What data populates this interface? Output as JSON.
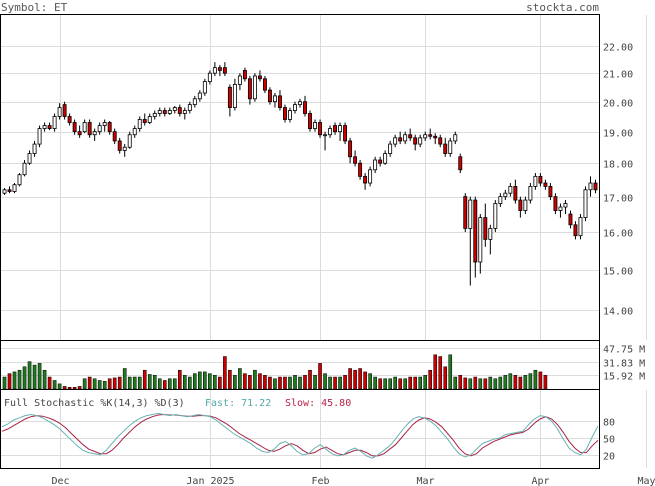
{
  "header": {
    "symbol_label": "Symbol: ET",
    "site": "stockta.com"
  },
  "chart_data": {
    "type": "candlestick",
    "symbol": "ET",
    "price_axis": {
      "ticks": [
        14.0,
        15.0,
        16.0,
        17.0,
        18.0,
        19.0,
        20.0,
        21.0,
        22.0
      ],
      "tick_labels": [
        "14.00",
        "15.00",
        "16.00",
        "17.00",
        "18.00",
        "19.00",
        "20.00",
        "21.00",
        "22.00"
      ],
      "range": [
        13.3,
        23.2
      ],
      "scale": "log",
      "grid": true
    },
    "x_axis": {
      "labels": [
        "Dec",
        "Jan 2025",
        "Feb",
        "Mar",
        "Apr",
        "May"
      ],
      "label_index": [
        11,
        41,
        63,
        84,
        107,
        128
      ]
    },
    "prices": [
      {
        "o": 17.1,
        "h": 17.25,
        "l": 17.05,
        "c": 17.2
      },
      {
        "o": 17.2,
        "h": 17.3,
        "l": 17.1,
        "c": 17.15
      },
      {
        "o": 17.15,
        "h": 17.4,
        "l": 17.1,
        "c": 17.35
      },
      {
        "o": 17.35,
        "h": 17.7,
        "l": 17.3,
        "c": 17.65
      },
      {
        "o": 17.65,
        "h": 18.1,
        "l": 17.6,
        "c": 18.0
      },
      {
        "o": 18.0,
        "h": 18.4,
        "l": 17.95,
        "c": 18.3
      },
      {
        "o": 18.3,
        "h": 18.7,
        "l": 18.2,
        "c": 18.6
      },
      {
        "o": 18.6,
        "h": 19.2,
        "l": 18.5,
        "c": 19.1
      },
      {
        "o": 19.1,
        "h": 19.3,
        "l": 19.0,
        "c": 19.2
      },
      {
        "o": 19.2,
        "h": 19.3,
        "l": 19.05,
        "c": 19.1
      },
      {
        "o": 19.1,
        "h": 19.6,
        "l": 19.0,
        "c": 19.5
      },
      {
        "o": 19.5,
        "h": 19.95,
        "l": 19.4,
        "c": 19.8
      },
      {
        "o": 19.9,
        "h": 20.0,
        "l": 19.4,
        "c": 19.5
      },
      {
        "o": 19.5,
        "h": 19.6,
        "l": 19.2,
        "c": 19.3
      },
      {
        "o": 19.3,
        "h": 19.4,
        "l": 18.9,
        "c": 19.0
      },
      {
        "o": 19.0,
        "h": 19.2,
        "l": 18.8,
        "c": 18.9
      },
      {
        "o": 19.0,
        "h": 19.4,
        "l": 18.95,
        "c": 19.3
      },
      {
        "o": 19.3,
        "h": 19.4,
        "l": 18.8,
        "c": 18.9
      },
      {
        "o": 18.9,
        "h": 19.1,
        "l": 18.7,
        "c": 19.0
      },
      {
        "o": 19.0,
        "h": 19.3,
        "l": 18.9,
        "c": 19.2
      },
      {
        "o": 19.2,
        "h": 19.4,
        "l": 19.0,
        "c": 19.3
      },
      {
        "o": 19.3,
        "h": 19.35,
        "l": 18.9,
        "c": 19.0
      },
      {
        "o": 19.0,
        "h": 19.1,
        "l": 18.6,
        "c": 18.7
      },
      {
        "o": 18.7,
        "h": 18.8,
        "l": 18.3,
        "c": 18.4
      },
      {
        "o": 18.4,
        "h": 18.6,
        "l": 18.2,
        "c": 18.5
      },
      {
        "o": 18.5,
        "h": 19.0,
        "l": 18.45,
        "c": 18.9
      },
      {
        "o": 18.9,
        "h": 19.2,
        "l": 18.8,
        "c": 19.1
      },
      {
        "o": 19.1,
        "h": 19.5,
        "l": 19.0,
        "c": 19.4
      },
      {
        "o": 19.4,
        "h": 19.6,
        "l": 19.2,
        "c": 19.3
      },
      {
        "o": 19.3,
        "h": 19.6,
        "l": 19.25,
        "c": 19.5
      },
      {
        "o": 19.5,
        "h": 19.7,
        "l": 19.4,
        "c": 19.6
      },
      {
        "o": 19.6,
        "h": 19.8,
        "l": 19.5,
        "c": 19.7
      },
      {
        "o": 19.7,
        "h": 19.8,
        "l": 19.5,
        "c": 19.6
      },
      {
        "o": 19.6,
        "h": 19.8,
        "l": 19.55,
        "c": 19.7
      },
      {
        "o": 19.7,
        "h": 19.85,
        "l": 19.6,
        "c": 19.8
      },
      {
        "o": 19.8,
        "h": 19.9,
        "l": 19.5,
        "c": 19.6
      },
      {
        "o": 19.6,
        "h": 19.8,
        "l": 19.4,
        "c": 19.7
      },
      {
        "o": 19.7,
        "h": 20.0,
        "l": 19.6,
        "c": 19.9
      },
      {
        "o": 19.9,
        "h": 20.2,
        "l": 19.8,
        "c": 20.1
      },
      {
        "o": 20.1,
        "h": 20.4,
        "l": 20.0,
        "c": 20.3
      },
      {
        "o": 20.3,
        "h": 20.8,
        "l": 20.2,
        "c": 20.7
      },
      {
        "o": 20.7,
        "h": 21.1,
        "l": 20.6,
        "c": 21.0
      },
      {
        "o": 21.0,
        "h": 21.4,
        "l": 20.9,
        "c": 21.2
      },
      {
        "o": 21.2,
        "h": 21.3,
        "l": 20.9,
        "c": 21.1
      },
      {
        "o": 21.2,
        "h": 21.4,
        "l": 20.9,
        "c": 21.0
      },
      {
        "o": 20.5,
        "h": 20.6,
        "l": 19.5,
        "c": 19.8
      },
      {
        "o": 19.8,
        "h": 20.8,
        "l": 19.7,
        "c": 20.6
      },
      {
        "o": 20.6,
        "h": 21.0,
        "l": 20.4,
        "c": 20.9
      },
      {
        "o": 21.1,
        "h": 21.2,
        "l": 20.7,
        "c": 20.8
      },
      {
        "o": 20.8,
        "h": 20.9,
        "l": 19.9,
        "c": 20.1
      },
      {
        "o": 20.1,
        "h": 21.0,
        "l": 20.0,
        "c": 20.9
      },
      {
        "o": 20.9,
        "h": 21.1,
        "l": 20.7,
        "c": 20.8
      },
      {
        "o": 20.8,
        "h": 20.9,
        "l": 20.3,
        "c": 20.4
      },
      {
        "o": 20.4,
        "h": 20.5,
        "l": 19.9,
        "c": 20.0
      },
      {
        "o": 20.0,
        "h": 20.3,
        "l": 19.8,
        "c": 20.2
      },
      {
        "o": 20.2,
        "h": 20.4,
        "l": 19.7,
        "c": 19.8
      },
      {
        "o": 19.8,
        "h": 19.9,
        "l": 19.3,
        "c": 19.4
      },
      {
        "o": 19.4,
        "h": 19.8,
        "l": 19.3,
        "c": 19.7
      },
      {
        "o": 19.7,
        "h": 20.0,
        "l": 19.6,
        "c": 19.9
      },
      {
        "o": 19.9,
        "h": 20.1,
        "l": 19.8,
        "c": 20.0
      },
      {
        "o": 20.0,
        "h": 20.2,
        "l": 19.5,
        "c": 19.6
      },
      {
        "o": 19.6,
        "h": 19.7,
        "l": 19.0,
        "c": 19.1
      },
      {
        "o": 19.1,
        "h": 19.4,
        "l": 19.0,
        "c": 19.3
      },
      {
        "o": 19.3,
        "h": 19.4,
        "l": 18.8,
        "c": 18.9
      },
      {
        "o": 18.9,
        "h": 19.0,
        "l": 18.4,
        "c": 18.9
      },
      {
        "o": 18.9,
        "h": 19.2,
        "l": 18.8,
        "c": 19.1
      },
      {
        "o": 19.2,
        "h": 19.3,
        "l": 18.9,
        "c": 19.0
      },
      {
        "o": 19.0,
        "h": 19.3,
        "l": 18.7,
        "c": 19.2
      },
      {
        "o": 19.2,
        "h": 19.3,
        "l": 18.6,
        "c": 18.7
      },
      {
        "o": 18.7,
        "h": 18.8,
        "l": 18.0,
        "c": 18.2
      },
      {
        "o": 18.2,
        "h": 18.4,
        "l": 17.9,
        "c": 18.0
      },
      {
        "o": 18.0,
        "h": 18.1,
        "l": 17.5,
        "c": 17.6
      },
      {
        "o": 17.6,
        "h": 17.7,
        "l": 17.2,
        "c": 17.4
      },
      {
        "o": 17.4,
        "h": 17.9,
        "l": 17.3,
        "c": 17.8
      },
      {
        "o": 17.8,
        "h": 18.2,
        "l": 17.7,
        "c": 18.1
      },
      {
        "o": 18.1,
        "h": 18.2,
        "l": 17.9,
        "c": 18.0
      },
      {
        "o": 18.0,
        "h": 18.4,
        "l": 17.95,
        "c": 18.3
      },
      {
        "o": 18.3,
        "h": 18.7,
        "l": 18.2,
        "c": 18.6
      },
      {
        "o": 18.6,
        "h": 18.9,
        "l": 18.5,
        "c": 18.8
      },
      {
        "o": 18.8,
        "h": 19.0,
        "l": 18.6,
        "c": 18.7
      },
      {
        "o": 18.7,
        "h": 19.0,
        "l": 18.6,
        "c": 18.9
      },
      {
        "o": 18.9,
        "h": 19.1,
        "l": 18.7,
        "c": 18.8
      },
      {
        "o": 18.8,
        "h": 18.9,
        "l": 18.4,
        "c": 18.6
      },
      {
        "o": 18.6,
        "h": 18.9,
        "l": 18.5,
        "c": 18.8
      },
      {
        "o": 18.8,
        "h": 19.0,
        "l": 18.7,
        "c": 18.9
      },
      {
        "o": 18.9,
        "h": 19.1,
        "l": 18.75,
        "c": 18.85
      },
      {
        "o": 18.85,
        "h": 18.95,
        "l": 18.6,
        "c": 18.8
      },
      {
        "o": 18.8,
        "h": 18.9,
        "l": 18.5,
        "c": 18.6
      },
      {
        "o": 18.6,
        "h": 18.8,
        "l": 18.2,
        "c": 18.3
      },
      {
        "o": 18.3,
        "h": 18.8,
        "l": 18.2,
        "c": 18.7
      },
      {
        "o": 18.7,
        "h": 19.0,
        "l": 18.6,
        "c": 18.9
      },
      {
        "o": 18.2,
        "h": 18.3,
        "l": 17.7,
        "c": 17.8
      },
      {
        "o": 17.0,
        "h": 17.1,
        "l": 16.0,
        "c": 16.1
      },
      {
        "o": 16.1,
        "h": 17.0,
        "l": 14.6,
        "c": 16.9
      },
      {
        "o": 16.9,
        "h": 17.0,
        "l": 14.8,
        "c": 15.2
      },
      {
        "o": 15.2,
        "h": 16.5,
        "l": 14.9,
        "c": 16.4
      },
      {
        "o": 16.4,
        "h": 16.8,
        "l": 15.6,
        "c": 15.8
      },
      {
        "o": 15.8,
        "h": 16.2,
        "l": 15.4,
        "c": 16.1
      },
      {
        "o": 16.1,
        "h": 16.9,
        "l": 16.0,
        "c": 16.8
      },
      {
        "o": 16.8,
        "h": 17.1,
        "l": 16.7,
        "c": 17.0
      },
      {
        "o": 17.0,
        "h": 17.2,
        "l": 16.9,
        "c": 17.1
      },
      {
        "o": 17.1,
        "h": 17.4,
        "l": 17.0,
        "c": 17.3
      },
      {
        "o": 17.3,
        "h": 17.5,
        "l": 16.8,
        "c": 16.9
      },
      {
        "o": 16.9,
        "h": 17.0,
        "l": 16.4,
        "c": 16.6
      },
      {
        "o": 16.6,
        "h": 17.0,
        "l": 16.5,
        "c": 16.9
      },
      {
        "o": 16.9,
        "h": 17.4,
        "l": 16.8,
        "c": 17.3
      },
      {
        "o": 17.3,
        "h": 17.7,
        "l": 17.2,
        "c": 17.6
      },
      {
        "o": 17.6,
        "h": 17.7,
        "l": 17.3,
        "c": 17.4
      },
      {
        "o": 17.4,
        "h": 17.5,
        "l": 17.2,
        "c": 17.3
      },
      {
        "o": 17.3,
        "h": 17.4,
        "l": 16.9,
        "c": 17.0
      },
      {
        "o": 17.0,
        "h": 17.1,
        "l": 16.5,
        "c": 16.6
      },
      {
        "o": 16.6,
        "h": 16.8,
        "l": 16.4,
        "c": 16.7
      },
      {
        "o": 16.7,
        "h": 16.9,
        "l": 16.5,
        "c": 16.8
      },
      {
        "o": 16.5,
        "h": 16.6,
        "l": 16.1,
        "c": 16.2
      },
      {
        "o": 16.2,
        "h": 16.3,
        "l": 15.8,
        "c": 15.9
      },
      {
        "o": 15.9,
        "h": 16.5,
        "l": 15.8,
        "c": 16.4
      },
      {
        "o": 16.4,
        "h": 17.3,
        "l": 16.3,
        "c": 17.2
      },
      {
        "o": 17.2,
        "h": 17.6,
        "l": 17.0,
        "c": 17.4
      },
      {
        "o": 17.4,
        "h": 17.5,
        "l": 17.1,
        "c": 17.2
      }
    ],
    "volume": {
      "axis_labels": [
        "47.75 M",
        "31.83 M",
        "15.92 M"
      ],
      "axis_values": [
        47.75,
        31.83,
        15.92
      ],
      "range": [
        0,
        55
      ],
      "values": [
        14,
        18,
        20,
        22,
        26,
        32,
        28,
        30,
        22,
        14,
        10,
        6,
        3,
        2,
        2,
        3,
        12,
        14,
        12,
        10,
        9,
        12,
        13,
        14,
        24,
        14,
        14,
        14,
        22,
        17,
        16,
        12,
        10,
        12,
        12,
        22,
        16,
        14,
        18,
        20,
        20,
        18,
        16,
        14,
        38,
        22,
        16,
        24,
        18,
        16,
        22,
        18,
        16,
        14,
        12,
        14,
        14,
        14,
        16,
        14,
        16,
        22,
        16,
        30,
        18,
        14,
        14,
        14,
        16,
        24,
        22,
        24,
        20,
        18,
        14,
        12,
        12,
        12,
        14,
        12,
        12,
        14,
        14,
        14,
        16,
        22,
        40,
        38,
        26,
        40,
        14,
        16,
        13,
        12,
        14,
        12,
        12,
        14,
        12,
        14,
        16,
        18,
        16,
        14,
        16,
        18,
        22,
        20,
        16
      ]
    },
    "stochastic": {
      "label": "Full Stochastic %K(14,3) %D(3)",
      "fast_label": "Fast: 71.22",
      "slow_label": "Slow: 45.80",
      "axis_labels": [
        "80",
        "50",
        "20"
      ],
      "axis_values": [
        80,
        50,
        20
      ],
      "range": [
        0,
        100
      ],
      "fast": [
        70,
        75,
        82,
        86,
        90,
        92,
        90,
        86,
        80,
        74,
        66,
        56,
        46,
        36,
        28,
        24,
        22,
        20,
        28,
        40,
        52,
        62,
        72,
        80,
        86,
        90,
        92,
        94,
        92,
        90,
        92,
        90,
        88,
        90,
        92,
        90,
        88,
        82,
        74,
        66,
        58,
        52,
        46,
        40,
        32,
        26,
        24,
        30,
        40,
        44,
        36,
        26,
        20,
        22,
        32,
        38,
        30,
        22,
        18,
        20,
        28,
        32,
        26,
        18,
        14,
        20,
        28,
        36,
        48,
        62,
        74,
        84,
        88,
        86,
        80,
        72,
        60,
        48,
        34,
        22,
        16,
        20,
        30,
        40,
        44,
        48,
        50,
        56,
        58,
        60,
        62,
        74,
        84,
        90,
        88,
        80,
        66,
        48,
        32,
        24,
        20,
        30,
        52,
        71.22
      ],
      "slow": [
        62,
        66,
        72,
        78,
        84,
        88,
        90,
        89,
        86,
        82,
        76,
        68,
        58,
        48,
        38,
        30,
        26,
        22,
        22,
        28,
        38,
        50,
        60,
        70,
        78,
        84,
        88,
        91,
        92,
        91,
        91,
        90,
        89,
        89,
        90,
        90,
        89,
        86,
        80,
        74,
        66,
        58,
        52,
        46,
        40,
        34,
        28,
        26,
        30,
        36,
        40,
        36,
        28,
        22,
        24,
        30,
        34,
        28,
        22,
        20,
        24,
        28,
        28,
        24,
        18,
        18,
        22,
        30,
        38,
        50,
        62,
        74,
        82,
        86,
        84,
        78,
        70,
        58,
        46,
        32,
        22,
        18,
        22,
        32,
        38,
        44,
        48,
        52,
        56,
        58,
        60,
        66,
        76,
        84,
        88,
        84,
        74,
        60,
        44,
        32,
        24,
        24,
        36,
        45.8
      ]
    },
    "colors": {
      "up_fill": "#ffffff",
      "down_fill": "#cc0000",
      "volume_up": "#1f7a1f",
      "volume_down": "#cc0000",
      "fast_line": "#66b3b3",
      "slow_line": "#aa2244",
      "fast_text": "#55a8a8",
      "slow_text": "#bb2244"
    }
  }
}
